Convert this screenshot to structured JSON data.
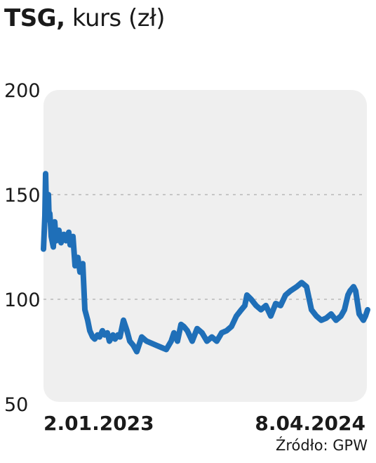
{
  "title": {
    "ticker": "TSG,",
    "rest": "kurs (zł)"
  },
  "source": "Źródło: GPW",
  "colors": {
    "line": "#1f6fb8",
    "panel": "#efefef",
    "grid": "#b8b8b8",
    "text": "#1a1a1a"
  },
  "chart_data": {
    "type": "line",
    "title": "TSG, kurs (zł)",
    "xlabel": "",
    "ylabel": "",
    "ylim": [
      50,
      200
    ],
    "yticks": [
      200,
      150,
      100,
      50
    ],
    "gridlines_at": [
      150,
      100
    ],
    "grid": true,
    "x_start_label": "2.01.2023",
    "x_end_label": "8.04.2024",
    "series": [
      {
        "name": "",
        "x": [
          "2023-01-02",
          "2023-01-04",
          "2023-01-05",
          "2023-01-06",
          "2023-01-09",
          "2023-01-10",
          "2023-01-11",
          "2023-01-12",
          "2023-01-13",
          "2023-01-16",
          "2023-01-18",
          "2023-01-20",
          "2023-01-24",
          "2023-01-27",
          "2023-01-31",
          "2023-02-03",
          "2023-02-07",
          "2023-02-09",
          "2023-02-13",
          "2023-02-16",
          "2023-02-20",
          "2023-02-23",
          "2023-02-27",
          "2023-03-02",
          "2023-03-06",
          "2023-03-09",
          "2023-03-13",
          "2023-03-16",
          "2023-03-20",
          "2023-03-23",
          "2023-03-27",
          "2023-03-30",
          "2023-04-03",
          "2023-04-06",
          "2023-04-11",
          "2023-04-14",
          "2023-04-18",
          "2023-04-21",
          "2023-04-26",
          "2023-05-01",
          "2023-05-05",
          "2023-05-10",
          "2023-05-15",
          "2023-05-22",
          "2023-05-29",
          "2023-06-05",
          "2023-06-12",
          "2023-06-19",
          "2023-06-26",
          "2023-07-03",
          "2023-07-07",
          "2023-07-12",
          "2023-07-17",
          "2023-07-21",
          "2023-07-26",
          "2023-08-02",
          "2023-08-09",
          "2023-08-16",
          "2023-08-23",
          "2023-08-30",
          "2023-09-06",
          "2023-09-13",
          "2023-09-20",
          "2023-09-27",
          "2023-10-04",
          "2023-10-11",
          "2023-10-16",
          "2023-10-19",
          "2023-10-25",
          "2023-11-01",
          "2023-11-08",
          "2023-11-15",
          "2023-11-22",
          "2023-11-29",
          "2023-12-06",
          "2023-12-13",
          "2023-12-20",
          "2023-12-29",
          "2024-01-05",
          "2024-01-12",
          "2024-01-19",
          "2024-01-26",
          "2024-02-02",
          "2024-02-09",
          "2024-02-16",
          "2024-02-23",
          "2024-03-01",
          "2024-03-06",
          "2024-03-11",
          "2024-03-14",
          "2024-03-19",
          "2024-03-22",
          "2024-03-27",
          "2024-04-02",
          "2024-04-05",
          "2024-04-08"
        ],
        "values": [
          124,
          140,
          160,
          145,
          150,
          138,
          141,
          136,
          130,
          125,
          137,
          128,
          133,
          127,
          131,
          128,
          132,
          126,
          130,
          116,
          120,
          113,
          117,
          95,
          90,
          85,
          82,
          81,
          83,
          82,
          85,
          83,
          84,
          80,
          83,
          81,
          83,
          82,
          90,
          85,
          80,
          78,
          75,
          82,
          80,
          79,
          78,
          77,
          76,
          80,
          84,
          80,
          88,
          87,
          85,
          80,
          86,
          84,
          80,
          82,
          80,
          84,
          85,
          87,
          92,
          95,
          97,
          102,
          100,
          97,
          95,
          97,
          92,
          98,
          97,
          102,
          104,
          106,
          108,
          106,
          95,
          92,
          90,
          91,
          93,
          90,
          92,
          95,
          102,
          104,
          106,
          104,
          93,
          90,
          92,
          95
        ]
      }
    ]
  }
}
